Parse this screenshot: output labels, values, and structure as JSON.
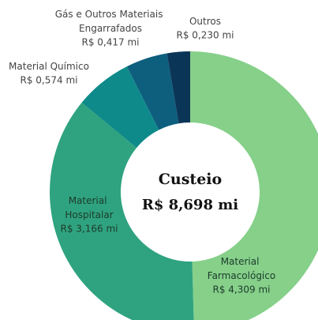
{
  "chart_data": {
    "type": "donut",
    "center_title": "Custeio",
    "center_label": "R$ 8,698 mi",
    "categories": [
      "Material Farmacológico",
      "Material Hospitalar",
      "Material Químico",
      "Gás e Outros Materiais Engarrafados",
      "Outros"
    ],
    "values": [
      4.309,
      3.166,
      0.574,
      0.417,
      0.23
    ],
    "value_labels": [
      "R$ 4,309 mi",
      "R$ 3,166 mi",
      "R$ 0,574 mi",
      "R$ 0,417 mi",
      "R$ 0,230 mi"
    ],
    "colors": [
      "#86d08a",
      "#2fa37f",
      "#0f8a8a",
      "#0e5f7e",
      "#0b3556"
    ]
  }
}
